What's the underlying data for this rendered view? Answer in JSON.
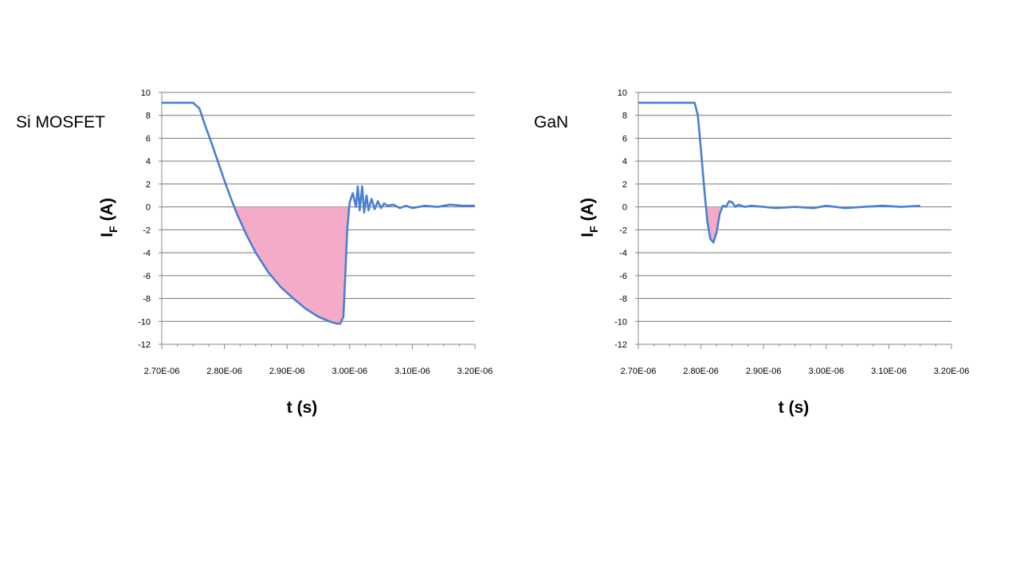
{
  "chart_data": [
    {
      "type": "line",
      "title": "Si MOSFET",
      "xlabel": "t (s)",
      "ylabel": "I",
      "ylabel_sub": "F",
      "ylabel_unit": "(A)",
      "xlim": [
        2.7e-06,
        3.2e-06
      ],
      "ylim": [
        -12,
        10
      ],
      "xticks": [
        "2.70E-06",
        "2.80E-06",
        "2.90E-06",
        "3.00E-06",
        "3.10E-06",
        "3.20E-06"
      ],
      "yticks": [
        "10",
        "8",
        "6",
        "4",
        "2",
        "0",
        "-2",
        "-4",
        "-6",
        "-8",
        "-10",
        "-12"
      ],
      "grid": "horizontal",
      "line_color": "#4a7fd1",
      "fill_color": "#f5aac8",
      "shaded_region": "reverse recovery area between the curve and 0 A",
      "series": [
        {
          "x": [
            2.7e-06,
            2.75e-06,
            2.76e-06,
            2.77e-06,
            2.78e-06,
            2.8e-06,
            2.81e-06,
            2.82e-06,
            2.835e-06,
            2.85e-06,
            2.87e-06,
            2.89e-06,
            2.91e-06,
            2.93e-06,
            2.95e-06,
            2.97e-06,
            2.98e-06,
            2.985e-06,
            2.99e-06,
            2.993e-06,
            2.996e-06,
            3e-06,
            3.005e-06,
            3.01e-06,
            3.013e-06,
            3.016e-06,
            3.02e-06,
            3.023e-06,
            3.027e-06,
            3.03e-06,
            3.035e-06,
            3.04e-06,
            3.045e-06,
            3.05e-06,
            3.055e-06,
            3.06e-06,
            3.07e-06,
            3.08e-06,
            3.09e-06,
            3.1e-06,
            3.12e-06,
            3.14e-06,
            3.16e-06,
            3.18e-06,
            3.2e-06
          ],
          "y": [
            9.1,
            9.1,
            8.6,
            7.0,
            5.5,
            2.3,
            0.8,
            -0.6,
            -2.4,
            -4.0,
            -5.7,
            -7.0,
            -8.0,
            -8.9,
            -9.6,
            -10.05,
            -10.2,
            -10.2,
            -9.6,
            -6.0,
            -2.0,
            0.4,
            1.2,
            0.0,
            1.8,
            -0.3,
            1.8,
            -0.5,
            1.0,
            -0.3,
            0.7,
            -0.2,
            0.5,
            -0.1,
            0.3,
            0.1,
            0.2,
            -0.1,
            0.1,
            -0.1,
            0.1,
            0.0,
            0.2,
            0.1,
            0.1
          ]
        }
      ]
    },
    {
      "type": "line",
      "title": "GaN",
      "xlabel": "t (s)",
      "ylabel": "I",
      "ylabel_sub": "F",
      "ylabel_unit": "(A)",
      "xlim": [
        2.7e-06,
        3.2e-06
      ],
      "ylim": [
        -12,
        10
      ],
      "xticks": [
        "2.70E-06",
        "2.80E-06",
        "2.90E-06",
        "3.00E-06",
        "3.10E-06",
        "3.20E-06"
      ],
      "yticks": [
        "10",
        "8",
        "6",
        "4",
        "2",
        "0",
        "-2",
        "-4",
        "-6",
        "-8",
        "-10",
        "-12"
      ],
      "grid": "horizontal",
      "line_color": "#4a7fd1",
      "fill_color": "#f5aac8",
      "shaded_region": "reverse recovery area between the curve and 0 A",
      "series": [
        {
          "x": [
            2.7e-06,
            2.79e-06,
            2.795e-06,
            2.8e-06,
            2.805e-06,
            2.81e-06,
            2.815e-06,
            2.82e-06,
            2.825e-06,
            2.83e-06,
            2.835e-06,
            2.84e-06,
            2.845e-06,
            2.85e-06,
            2.855e-06,
            2.86e-06,
            2.87e-06,
            2.88e-06,
            2.9e-06,
            2.92e-06,
            2.95e-06,
            2.98e-06,
            3e-06,
            3.03e-06,
            3.06e-06,
            3.09e-06,
            3.12e-06,
            3.15e-06
          ],
          "y": [
            9.1,
            9.1,
            8.0,
            5.0,
            1.8,
            -1.2,
            -2.8,
            -3.1,
            -2.2,
            -0.6,
            0.1,
            0.0,
            0.5,
            0.4,
            0.0,
            0.2,
            0.0,
            0.1,
            0.0,
            -0.1,
            0.0,
            -0.1,
            0.1,
            -0.1,
            0.0,
            0.1,
            0.0,
            0.1
          ]
        }
      ]
    }
  ]
}
